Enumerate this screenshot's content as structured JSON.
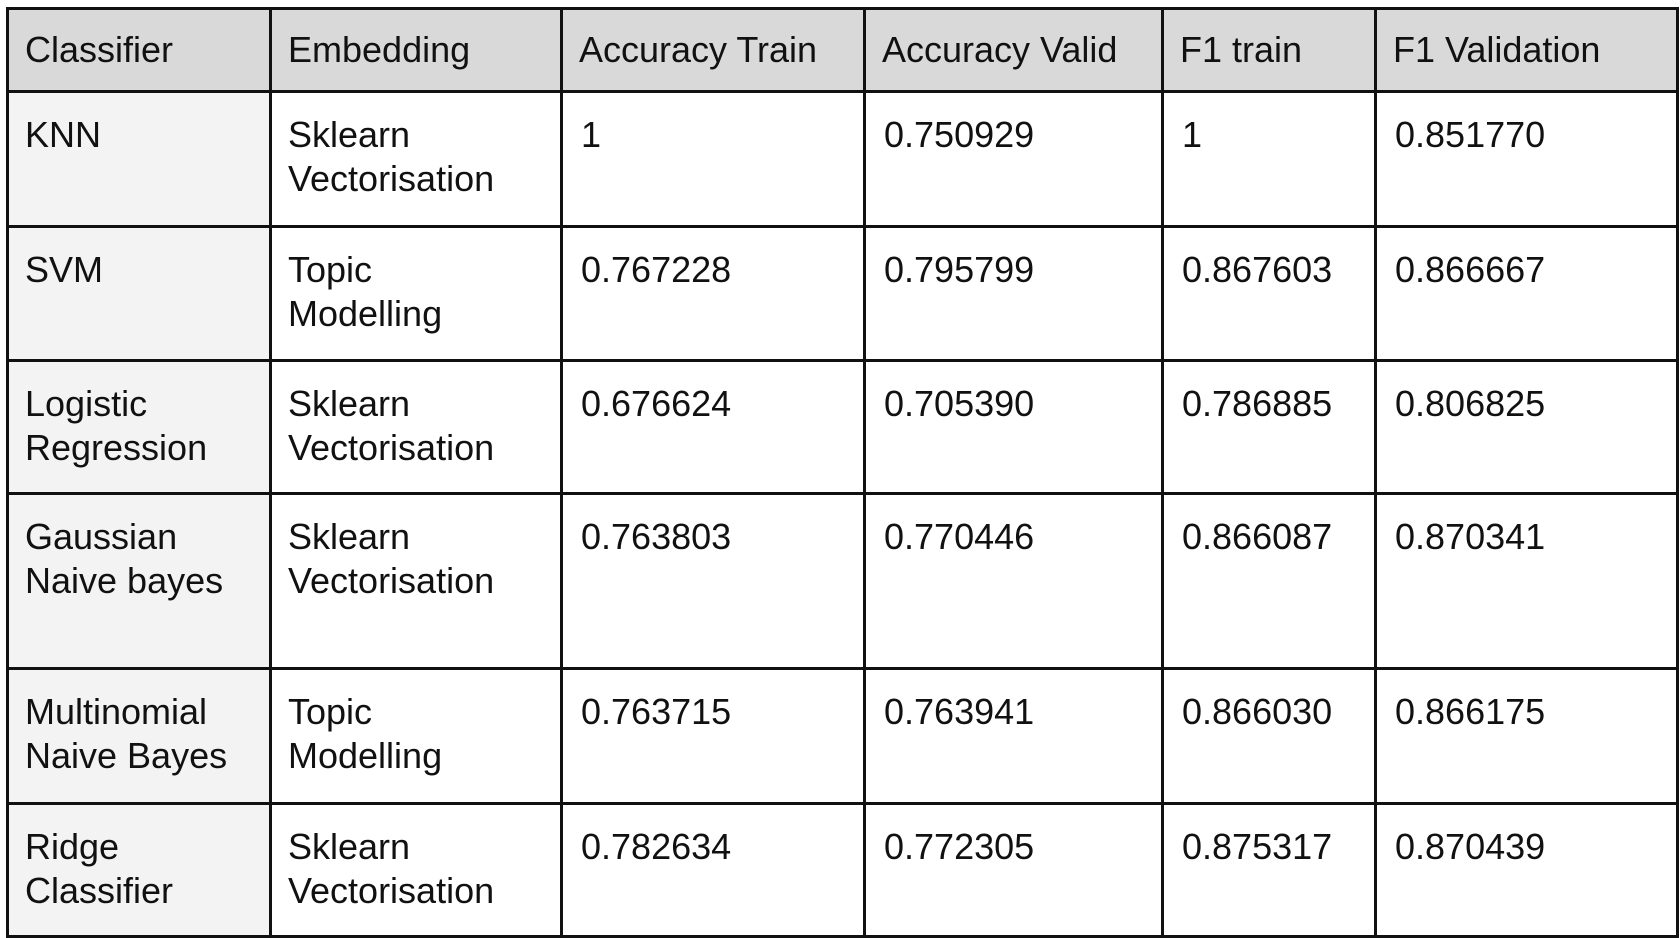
{
  "table": {
    "headers": [
      "Classifier",
      "Embedding",
      "Accuracy Train",
      "Accuracy Valid",
      "F1 train",
      "F1 Validation"
    ],
    "rows": [
      [
        "KNN",
        "Sklearn\nVectorisation",
        "1",
        "0.750929",
        "1",
        "0.851770"
      ],
      [
        "SVM",
        "Topic\nModelling",
        "0.767228",
        "0.795799",
        "0.867603",
        "0.866667"
      ],
      [
        "Logistic\nRegression",
        "Sklearn\nVectorisation",
        "0.676624",
        "0.705390",
        "0.786885",
        "0.806825"
      ],
      [
        "Gaussian\nNaive bayes",
        "Sklearn\nVectorisation",
        "0.763803",
        "0.770446",
        "0.866087",
        "0.870341"
      ],
      [
        "Multinomial\nNaive Bayes",
        "Topic\nModelling",
        "0.763715",
        "0.763941",
        "0.866030",
        "0.866175"
      ],
      [
        "Ridge\nClassifier",
        "Sklearn\nVectorisation",
        "0.782634",
        "0.772305",
        "0.875317",
        "0.870439"
      ]
    ]
  },
  "colors": {
    "header_bg": "#d9d9d9",
    "first_col_bg": "#f3f3f3",
    "border": "#111111"
  }
}
